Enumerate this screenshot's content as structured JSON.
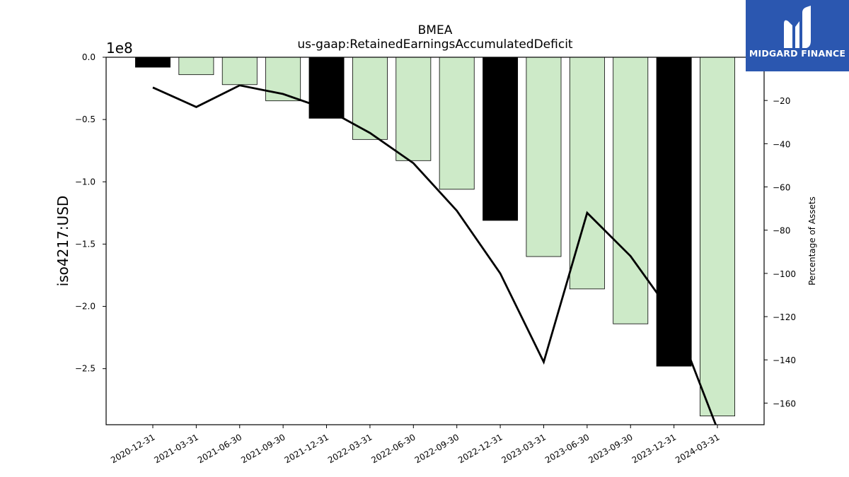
{
  "brand": {
    "name": "MIDGARD FINANCE",
    "color": "#2b57b0",
    "icon": "midgard-logo-icon"
  },
  "chart_data": {
    "type": "bar",
    "title": "BMEA",
    "subtitle": "us-gaap:RetainedEarningsAccumulatedDeficit",
    "ylabel": "iso4217:USD",
    "y2label": "Percentage of Assets",
    "y_offset_label": "1e8",
    "categories": [
      "2020-12-31",
      "2021-03-31",
      "2021-06-30",
      "2021-09-30",
      "2021-12-31",
      "2022-03-31",
      "2022-06-30",
      "2022-09-30",
      "2022-12-31",
      "2023-03-31",
      "2023-06-30",
      "2023-09-30",
      "2023-12-31",
      "2024-03-31"
    ],
    "ylim": [
      -2.95,
      0.0
    ],
    "yticks": [
      0.0,
      -0.5,
      -1.0,
      -1.5,
      -2.0,
      -2.5
    ],
    "ytick_labels": [
      "0.0",
      "−0.5",
      "−1.0",
      "−1.5",
      "−2.0",
      "−2.5"
    ],
    "y2lim": [
      -170,
      0
    ],
    "y2ticks": [
      -20,
      -40,
      -60,
      -80,
      -100,
      -120,
      -140,
      -160
    ],
    "y2tick_labels": [
      "−20",
      "−40",
      "−60",
      "−80",
      "−100",
      "−120",
      "−140",
      "−160"
    ],
    "series": [
      {
        "type": "bar",
        "axis": "left",
        "values": [
          -0.08,
          -0.14,
          -0.22,
          -0.35,
          -0.49,
          -0.66,
          -0.83,
          -1.06,
          -1.31,
          -1.6,
          -1.86,
          -2.14,
          -2.48,
          -2.88
        ],
        "is_annual": [
          true,
          false,
          false,
          false,
          true,
          false,
          false,
          false,
          true,
          false,
          false,
          false,
          true,
          false
        ]
      },
      {
        "type": "line",
        "axis": "right",
        "values": [
          -14,
          -23,
          -13,
          -17,
          -24,
          -35,
          -49,
          -71,
          -100,
          -141,
          -72,
          -92,
          -120,
          -172
        ]
      }
    ],
    "colors": {
      "annual_bar": "#000000",
      "quarter_bar": "#cdeac8",
      "bar_edge": "#000000",
      "line": "#000000"
    },
    "grid": false,
    "legend": "none"
  }
}
